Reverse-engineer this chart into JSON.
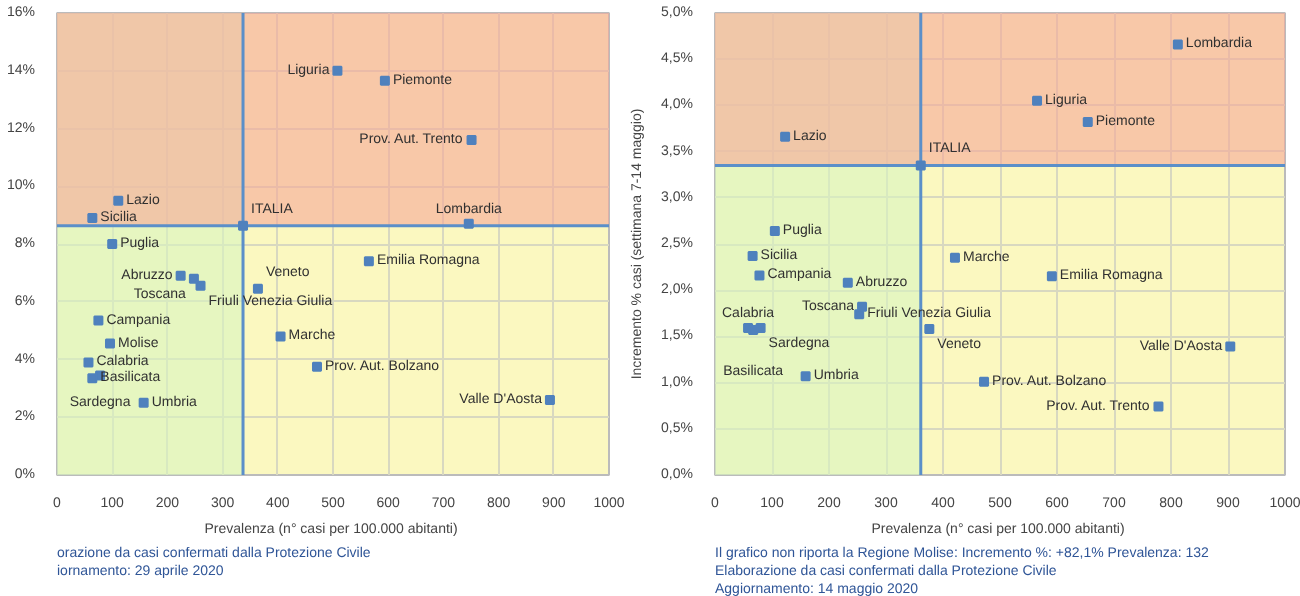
{
  "chart_data": [
    {
      "type": "scatter",
      "xlabel": "Prevalenza  (n° casi per 100.000 abitanti)",
      "marker": "square",
      "grid": true,
      "x": [
        508,
        594,
        751,
        746,
        64,
        111,
        337,
        100,
        224,
        248,
        260,
        565,
        364,
        75,
        96,
        57,
        78,
        64,
        157,
        405,
        471,
        893
      ],
      "series": [
        {
          "color": "#4f81bd",
          "values": [
            14.0,
            13.65,
            11.6,
            8.7,
            8.9,
            9.5,
            8.63,
            8.0,
            6.9,
            6.8,
            6.55,
            7.4,
            6.45,
            5.35,
            4.55,
            3.9,
            3.45,
            3.35,
            2.5,
            4.8,
            3.75,
            2.6
          ]
        }
      ],
      "annotations": [
        {
          "text": "Liguria",
          "x": 508,
          "y": 14.0
        },
        {
          "text": "Piemonte",
          "x": 594,
          "y": 13.65
        },
        {
          "text": "Prov. Aut. Trento",
          "x": 751,
          "y": 11.6
        },
        {
          "text": "Lombardia",
          "x": 746,
          "y": 8.7
        },
        {
          "text": "Sicilia",
          "x": 64,
          "y": 8.9
        },
        {
          "text": "Lazio",
          "x": 111,
          "y": 9.5
        },
        {
          "text": "ITALIA",
          "x": 337,
          "y": 8.63
        },
        {
          "text": "Puglia",
          "x": 100,
          "y": 8.0
        },
        {
          "text": "Abruzzo",
          "x": 224,
          "y": 6.9
        },
        {
          "text": "Toscana",
          "x": 248,
          "y": 6.8
        },
        {
          "text": "Friuli Venezia Giulia",
          "x": 260,
          "y": 6.55
        },
        {
          "text": "Emilia Romagna",
          "x": 565,
          "y": 7.4
        },
        {
          "text": "Veneto",
          "x": 364,
          "y": 6.45
        },
        {
          "text": "Campania",
          "x": 75,
          "y": 5.35
        },
        {
          "text": "Molise",
          "x": 96,
          "y": 4.55
        },
        {
          "text": "Calabria",
          "x": 57,
          "y": 3.9
        },
        {
          "text": "Sardegna",
          "x": 78,
          "y": 3.45
        },
        {
          "text": "Basilicata",
          "x": 64,
          "y": 3.35
        },
        {
          "text": "Umbria",
          "x": 157,
          "y": 2.5
        },
        {
          "text": "Marche",
          "x": 405,
          "y": 4.8
        },
        {
          "text": "Prov. Aut. Bolzano",
          "x": 471,
          "y": 3.75
        },
        {
          "text": "Valle D'Aosta",
          "x": 893,
          "y": 2.6
        },
        "orazione da casi confermati dalla Protezione Civile",
        "iornamento: 29 aprile 2020"
      ],
      "xlim": [
        0,
        1000
      ],
      "xticks": [
        0,
        100,
        200,
        300,
        400,
        500,
        600,
        700,
        800,
        900,
        1000
      ],
      "ylim": [
        0,
        16
      ],
      "yticks": [
        {
          "value": 0,
          "label": "0%"
        },
        {
          "value": 2,
          "label": "2%"
        },
        {
          "value": 4,
          "label": "4%"
        },
        {
          "value": 6,
          "label": "6%"
        },
        {
          "value": 8,
          "label": "8%"
        },
        {
          "value": 10,
          "label": "10%"
        },
        {
          "value": 12,
          "label": "12%"
        },
        {
          "value": 14,
          "label": "14%"
        },
        {
          "value": 16,
          "label": "16%"
        }
      ],
      "ref_lines": [
        {
          "axis": "x",
          "value": 337,
          "color": "#5b8fc9"
        },
        {
          "axis": "y",
          "value": 8.63,
          "color": "#5b8fc9"
        }
      ],
      "bands": [
        {
          "axis": "x",
          "from": 0,
          "to": 337,
          "color": "#d9f5c0"
        },
        {
          "axis": "y",
          "from": 8.63,
          "to": 16,
          "color": "#f7a898"
        }
      ]
    },
    {
      "type": "scatter",
      "xlabel": "Prevalenza  (n° casi per 100.000 abitanti)",
      "ylabel": "Incremento % casi (settimana 7-14 maggio)",
      "marker": "square",
      "grid": true,
      "x": [
        812,
        565,
        654,
        123,
        361,
        105,
        66,
        78,
        233,
        421,
        591,
        258,
        253,
        58,
        80,
        67,
        376,
        159,
        472,
        778,
        904
      ],
      "series": [
        {
          "color": "#4f81bd",
          "values": [
            4.66,
            4.05,
            3.82,
            3.66,
            3.35,
            2.64,
            2.37,
            2.16,
            2.08,
            2.35,
            2.15,
            1.82,
            1.74,
            1.59,
            1.59,
            1.57,
            1.58,
            1.07,
            1.01,
            0.74,
            1.39
          ]
        }
      ],
      "annotations": [
        {
          "text": "Lombardia",
          "x": 812,
          "y": 4.66
        },
        {
          "text": "Liguria",
          "x": 565,
          "y": 4.05
        },
        {
          "text": "Piemonte",
          "x": 654,
          "y": 3.82
        },
        {
          "text": "Lazio",
          "x": 123,
          "y": 3.66
        },
        {
          "text": "ITALIA",
          "x": 361,
          "y": 3.35
        },
        {
          "text": "Puglia",
          "x": 105,
          "y": 2.64
        },
        {
          "text": "Sicilia",
          "x": 66,
          "y": 2.37
        },
        {
          "text": "Campania",
          "x": 78,
          "y": 2.16
        },
        {
          "text": "Abruzzo",
          "x": 233,
          "y": 2.08
        },
        {
          "text": "Marche",
          "x": 421,
          "y": 2.35
        },
        {
          "text": "Emilia Romagna",
          "x": 591,
          "y": 2.15
        },
        {
          "text": "Toscana",
          "x": 258,
          "y": 1.82
        },
        {
          "text": "Friuli Venezia Giulia",
          "x": 253,
          "y": 1.74
        },
        {
          "text": "Calabria",
          "x": 58,
          "y": 1.59
        },
        {
          "text": "Sardegna",
          "x": 80,
          "y": 1.59
        },
        {
          "text": "Basilicata",
          "x": 67,
          "y": 1.57
        },
        {
          "text": "Veneto",
          "x": 376,
          "y": 1.58
        },
        {
          "text": "Umbria",
          "x": 159,
          "y": 1.07
        },
        {
          "text": "Prov. Aut. Bolzano",
          "x": 472,
          "y": 1.01
        },
        {
          "text": "Prov. Aut. Trento",
          "x": 778,
          "y": 0.74
        },
        {
          "text": "Valle D'Aosta",
          "x": 904,
          "y": 1.39
        },
        "Il grafico non riporta la Regione Molise: Incremento %: +82,1% Prevalenza: 132",
        "Elaborazione da casi confermati dalla Protezione Civile",
        "Aggiornamento: 14 maggio 2020"
      ],
      "xlim": [
        0,
        1000
      ],
      "xticks": [
        0,
        100,
        200,
        300,
        400,
        500,
        600,
        700,
        800,
        900,
        1000
      ],
      "ylim": [
        0,
        5
      ],
      "yticks": [
        {
          "value": 0,
          "label": "0,0%"
        },
        {
          "value": 0.5,
          "label": "0,5%"
        },
        {
          "value": 1,
          "label": "1,0%"
        },
        {
          "value": 1.5,
          "label": "1,5%"
        },
        {
          "value": 2,
          "label": "2,0%"
        },
        {
          "value": 2.5,
          "label": "2,5%"
        },
        {
          "value": 3,
          "label": "3,0%"
        },
        {
          "value": 3.5,
          "label": "3,5%"
        },
        {
          "value": 4,
          "label": "4,0%"
        },
        {
          "value": 4.5,
          "label": "4,5%"
        },
        {
          "value": 5,
          "label": "5,0%"
        }
      ],
      "ref_lines": [
        {
          "axis": "x",
          "value": 361,
          "color": "#5b8fc9"
        },
        {
          "axis": "y",
          "value": 3.35,
          "color": "#5b8fc9"
        }
      ],
      "bands": [
        {
          "axis": "x",
          "from": 0,
          "to": 361,
          "color": "#d9f5c0"
        },
        {
          "axis": "y",
          "from": 3.35,
          "to": 5,
          "color": "#f7a898"
        }
      ]
    }
  ]
}
